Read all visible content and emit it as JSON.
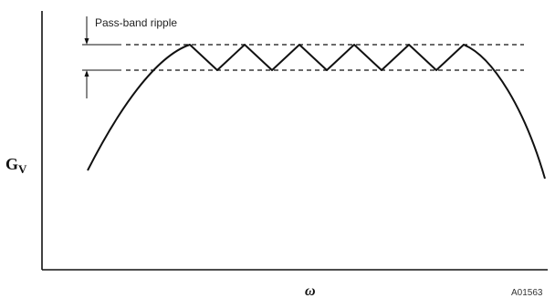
{
  "figure": {
    "annotation_label": "Pass-band ripple",
    "y_axis_label_main": "G",
    "y_axis_label_sub": "V",
    "x_axis_label": "ω",
    "figure_id": "A01563",
    "ripple_peaks": 6
  }
}
